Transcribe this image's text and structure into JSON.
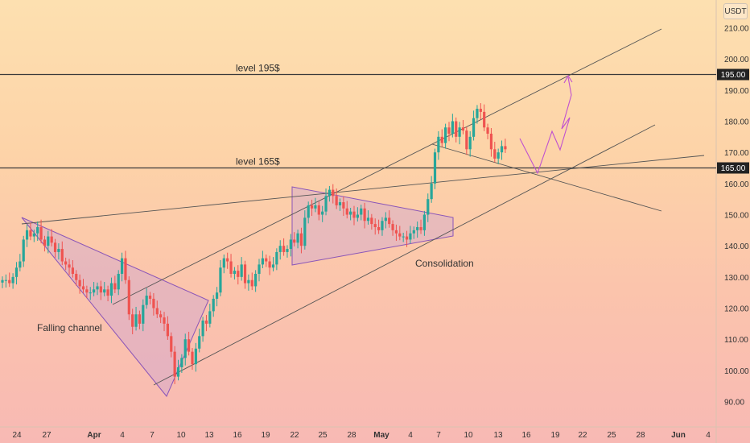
{
  "currency": "USDT",
  "chart_data": {
    "type": "candlestick",
    "y_axis": {
      "ticks": [
        "210.00",
        "200.00",
        "190.00",
        "180.00",
        "170.00",
        "160.00",
        "150.00",
        "140.00",
        "130.00",
        "120.00",
        "110.00",
        "100.00",
        "90.00"
      ],
      "tick_values": [
        210,
        200,
        190,
        180,
        170,
        160,
        150,
        140,
        130,
        120,
        110,
        100,
        90
      ],
      "range": [
        84,
        216
      ]
    },
    "x_axis": {
      "labels": [
        "24",
        "27",
        "Apr",
        "4",
        "7",
        "10",
        "13",
        "16",
        "19",
        "22",
        "25",
        "28",
        "May",
        "4",
        "7",
        "10",
        "13",
        "16",
        "19",
        "22",
        "25",
        "28",
        "Jun",
        "4"
      ],
      "bold_labels": [
        "Apr",
        "May",
        "Jun"
      ]
    },
    "levels": [
      {
        "label": "level 195$",
        "price": 195,
        "tag": "195.00"
      },
      {
        "label": "level 165$",
        "price": 165,
        "tag": "165.00"
      }
    ],
    "annotations": [
      {
        "text": "Falling channel"
      },
      {
        "text": "Consolidation"
      }
    ],
    "colors": {
      "up": "#26a69a",
      "down": "#ef5350",
      "pattern_fill": "#c8a0d8",
      "pattern_stroke": "#8a55b8",
      "projection": "#c050d0",
      "trendline": "#555555",
      "level_line": "#3a3a3a"
    },
    "closes": [
      129,
      129,
      128,
      130,
      133,
      135,
      142,
      145,
      143,
      144,
      146,
      142,
      140,
      143,
      141,
      138,
      139,
      135,
      134,
      133,
      131,
      129,
      127,
      126,
      125,
      125,
      126,
      127,
      125,
      126,
      124,
      128,
      126,
      131,
      136,
      129,
      118,
      114,
      118,
      115,
      121,
      124,
      123,
      120,
      118,
      117,
      115,
      111,
      106,
      98,
      101,
      104,
      110,
      106,
      102,
      107,
      111,
      116,
      115,
      119,
      123,
      125,
      133,
      136,
      135,
      131,
      132,
      130,
      134,
      128,
      129,
      127,
      131,
      134,
      136,
      135,
      133,
      134,
      138,
      140,
      138,
      139,
      142,
      141,
      144,
      140,
      149,
      153,
      152,
      153,
      150,
      151,
      156,
      158,
      156,
      153,
      154,
      152,
      150,
      151,
      149,
      150,
      152,
      148,
      149,
      147,
      146,
      145,
      148,
      149,
      147,
      145,
      144,
      143,
      143,
      142,
      144,
      145,
      146,
      145,
      150,
      155,
      160,
      170,
      175,
      173,
      178,
      176,
      180,
      175,
      178,
      177,
      171,
      175,
      181,
      184,
      183,
      178,
      176,
      171,
      168,
      170,
      172,
      171
    ]
  }
}
